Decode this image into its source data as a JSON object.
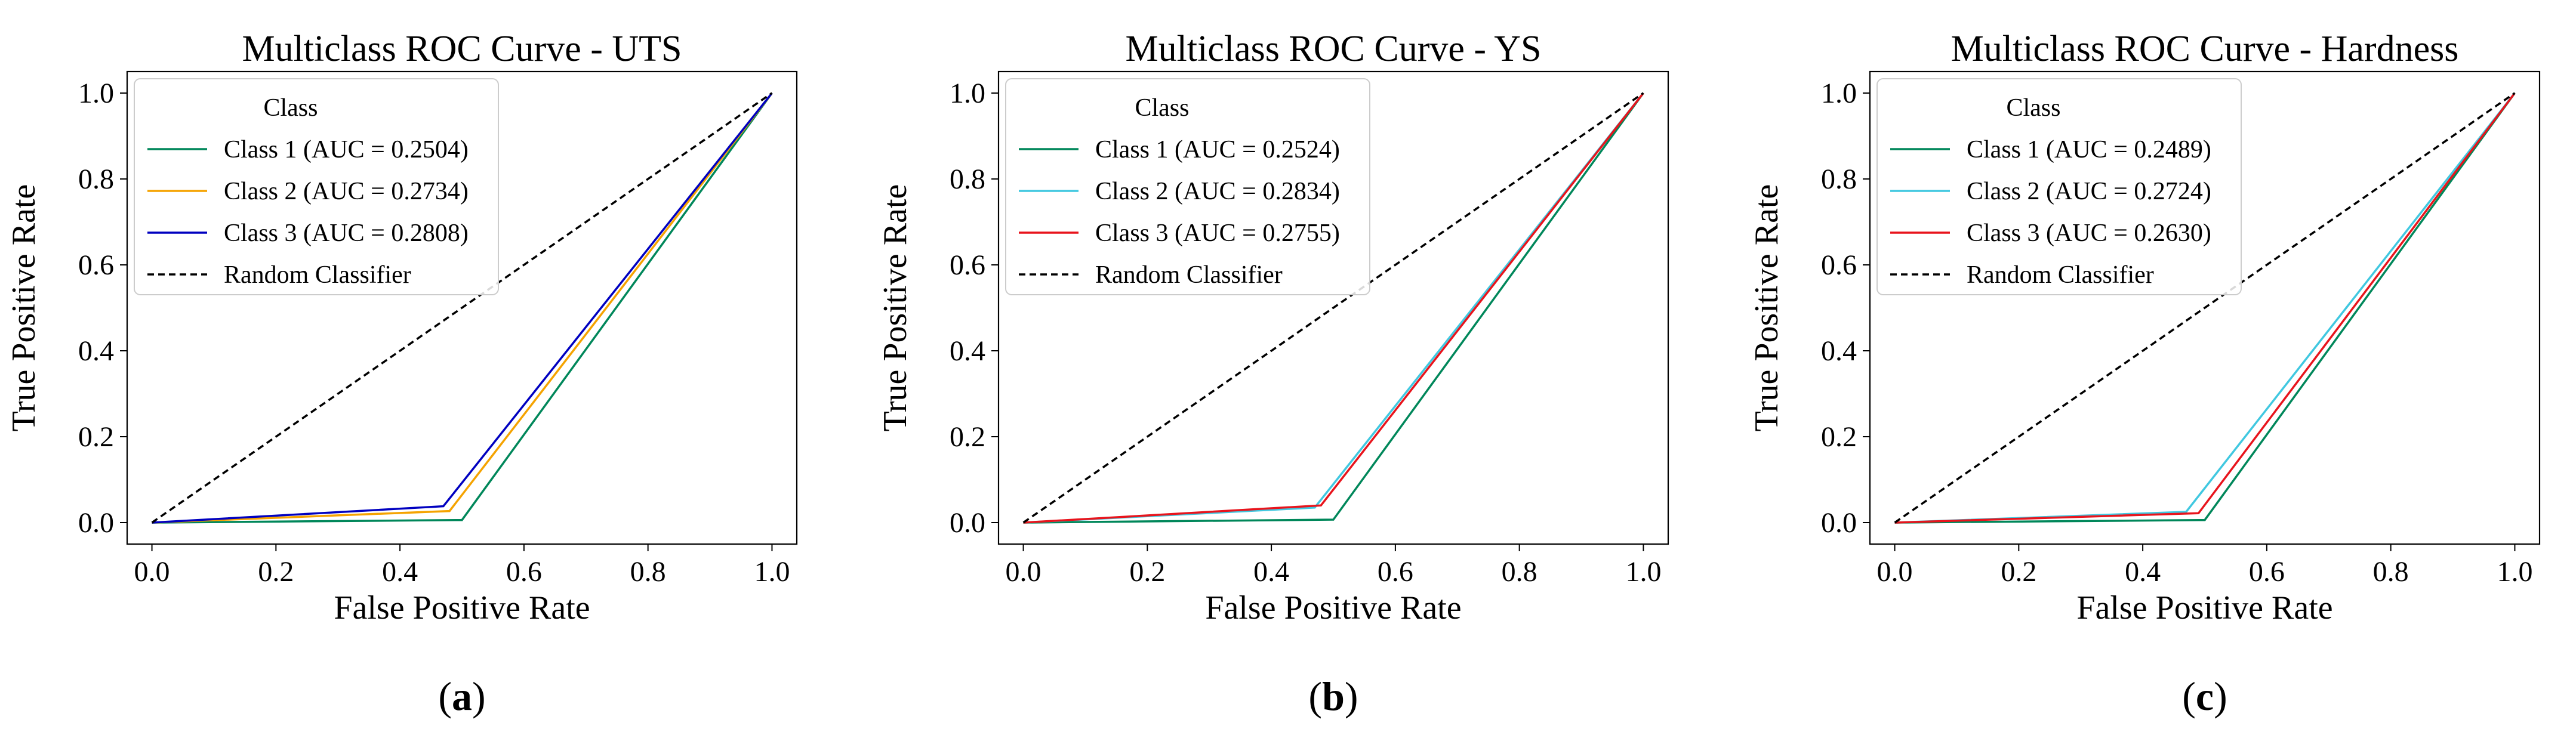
{
  "colors": {
    "class1": "#00875a",
    "class2_uts": "#f5a300",
    "class2_other": "#40c8e0",
    "class3_uts": "#0000c0",
    "class3_other": "#e8141c",
    "random": "#000000"
  },
  "chart_data": [
    {
      "type": "line",
      "title": "Multiclass ROC Curve - UTS",
      "xlabel": "False Positive Rate",
      "ylabel": "True Positive Rate",
      "xlim": [
        -0.04,
        1.04
      ],
      "ylim": [
        -0.05,
        1.05
      ],
      "xticks": [
        0.0,
        0.2,
        0.4,
        0.6,
        0.8,
        1.0
      ],
      "yticks": [
        0.0,
        0.2,
        0.4,
        0.6,
        0.8,
        1.0
      ],
      "xtick_labels": [
        "0.0",
        "0.2",
        "0.4",
        "0.6",
        "0.8",
        "1.0"
      ],
      "ytick_labels": [
        "0.0",
        "0.2",
        "0.4",
        "0.6",
        "0.8",
        "1.0"
      ],
      "legend_title": "Class",
      "legend_position": "upper-left",
      "panel_open": "(",
      "panel_letter": "a",
      "panel_close": ")",
      "series": [
        {
          "name": "Class 1 (AUC = 0.2504)",
          "color": "#00875a",
          "dashed": false,
          "x": [
            0.0,
            0.5,
            1.0
          ],
          "y": [
            0.0,
            0.006,
            1.0
          ]
        },
        {
          "name": "Class 2 (AUC = 0.2734)",
          "color": "#f5a300",
          "dashed": false,
          "x": [
            0.0,
            0.48,
            1.0
          ],
          "y": [
            0.0,
            0.027,
            1.0
          ]
        },
        {
          "name": "Class 3 (AUC = 0.2808)",
          "color": "#0000c0",
          "dashed": false,
          "x": [
            0.0,
            0.47,
            1.0
          ],
          "y": [
            0.0,
            0.038,
            1.0
          ]
        },
        {
          "name": "Random Classifier",
          "color": "#000000",
          "dashed": true,
          "x": [
            0.0,
            1.0
          ],
          "y": [
            0.0,
            1.0
          ]
        }
      ]
    },
    {
      "type": "line",
      "title": "Multiclass ROC Curve - YS",
      "xlabel": "False Positive Rate",
      "ylabel": "True Positive Rate",
      "xlim": [
        -0.04,
        1.04
      ],
      "ylim": [
        -0.05,
        1.05
      ],
      "xticks": [
        0.0,
        0.2,
        0.4,
        0.6,
        0.8,
        1.0
      ],
      "yticks": [
        0.0,
        0.2,
        0.4,
        0.6,
        0.8,
        1.0
      ],
      "xtick_labels": [
        "0.0",
        "0.2",
        "0.4",
        "0.6",
        "0.8",
        "1.0"
      ],
      "ytick_labels": [
        "0.0",
        "0.2",
        "0.4",
        "0.6",
        "0.8",
        "1.0"
      ],
      "legend_title": "Class",
      "legend_position": "upper-left",
      "panel_open": "(",
      "panel_letter": "b",
      "panel_close": ")",
      "series": [
        {
          "name": "Class 1 (AUC = 0.2524)",
          "color": "#00875a",
          "dashed": false,
          "x": [
            0.0,
            0.5,
            1.0
          ],
          "y": [
            0.0,
            0.007,
            1.0
          ]
        },
        {
          "name": "Class 2 (AUC = 0.2834)",
          "color": "#40c8e0",
          "dashed": false,
          "x": [
            0.0,
            0.47,
            1.0
          ],
          "y": [
            0.0,
            0.035,
            1.0
          ]
        },
        {
          "name": "Class 3 (AUC = 0.2755)",
          "color": "#e8141c",
          "dashed": false,
          "x": [
            0.0,
            0.48,
            1.0
          ],
          "y": [
            0.0,
            0.04,
            1.0
          ]
        },
        {
          "name": "Random Classifier",
          "color": "#000000",
          "dashed": true,
          "x": [
            0.0,
            1.0
          ],
          "y": [
            0.0,
            1.0
          ]
        }
      ]
    },
    {
      "type": "line",
      "title": "Multiclass ROC Curve - Hardness",
      "xlabel": "False Positive Rate",
      "ylabel": "True Positive Rate",
      "xlim": [
        -0.04,
        1.04
      ],
      "ylim": [
        -0.05,
        1.05
      ],
      "xticks": [
        0.0,
        0.2,
        0.4,
        0.6,
        0.8,
        1.0
      ],
      "yticks": [
        0.0,
        0.2,
        0.4,
        0.6,
        0.8,
        1.0
      ],
      "xtick_labels": [
        "0.0",
        "0.2",
        "0.4",
        "0.6",
        "0.8",
        "1.0"
      ],
      "ytick_labels": [
        "0.0",
        "0.2",
        "0.4",
        "0.6",
        "0.8",
        "1.0"
      ],
      "legend_title": "Class",
      "legend_position": "upper-left",
      "panel_open": "(",
      "panel_letter": "c",
      "panel_close": ")",
      "series": [
        {
          "name": "Class 1 (AUC = 0.2489)",
          "color": "#00875a",
          "dashed": false,
          "x": [
            0.0,
            0.5,
            1.0
          ],
          "y": [
            0.0,
            0.006,
            1.0
          ]
        },
        {
          "name": "Class 2 (AUC = 0.2724)",
          "color": "#40c8e0",
          "dashed": false,
          "x": [
            0.0,
            0.47,
            1.0
          ],
          "y": [
            0.0,
            0.025,
            1.0
          ]
        },
        {
          "name": "Class 3 (AUC = 0.2630)",
          "color": "#e8141c",
          "dashed": false,
          "x": [
            0.0,
            0.49,
            1.0
          ],
          "y": [
            0.0,
            0.022,
            1.0
          ]
        },
        {
          "name": "Random Classifier",
          "color": "#000000",
          "dashed": true,
          "x": [
            0.0,
            1.0
          ],
          "y": [
            0.0,
            1.0
          ]
        }
      ]
    }
  ]
}
